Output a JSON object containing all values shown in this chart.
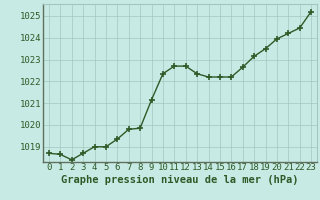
{
  "x": [
    0,
    1,
    2,
    3,
    4,
    5,
    6,
    7,
    8,
    9,
    10,
    11,
    12,
    13,
    14,
    15,
    16,
    17,
    18,
    19,
    20,
    21,
    22,
    23
  ],
  "y": [
    1018.7,
    1018.65,
    1018.4,
    1018.7,
    1019.0,
    1019.0,
    1019.35,
    1019.8,
    1019.85,
    1021.15,
    1022.35,
    1022.7,
    1022.7,
    1022.35,
    1022.2,
    1022.2,
    1022.2,
    1022.65,
    1023.15,
    1023.5,
    1023.95,
    1024.2,
    1024.45,
    1025.2
  ],
  "line_color": "#2d5a27",
  "marker_color": "#2d5a27",
  "bg_color": "#c8eae4",
  "grid_color": "#a0c8c0",
  "axis_label_color": "#2d5a27",
  "xlabel": "Graphe pression niveau de la mer (hPa)",
  "ylim_min": 1018.3,
  "ylim_max": 1025.55,
  "yticks": [
    1019,
    1020,
    1021,
    1022,
    1023,
    1024,
    1025
  ],
  "xticks": [
    0,
    1,
    2,
    3,
    4,
    5,
    6,
    7,
    8,
    9,
    10,
    11,
    12,
    13,
    14,
    15,
    16,
    17,
    18,
    19,
    20,
    21,
    22,
    23
  ],
  "xlabel_fontsize": 7.5,
  "tick_fontsize": 6.5,
  "marker_size": 4,
  "line_width": 1.0
}
